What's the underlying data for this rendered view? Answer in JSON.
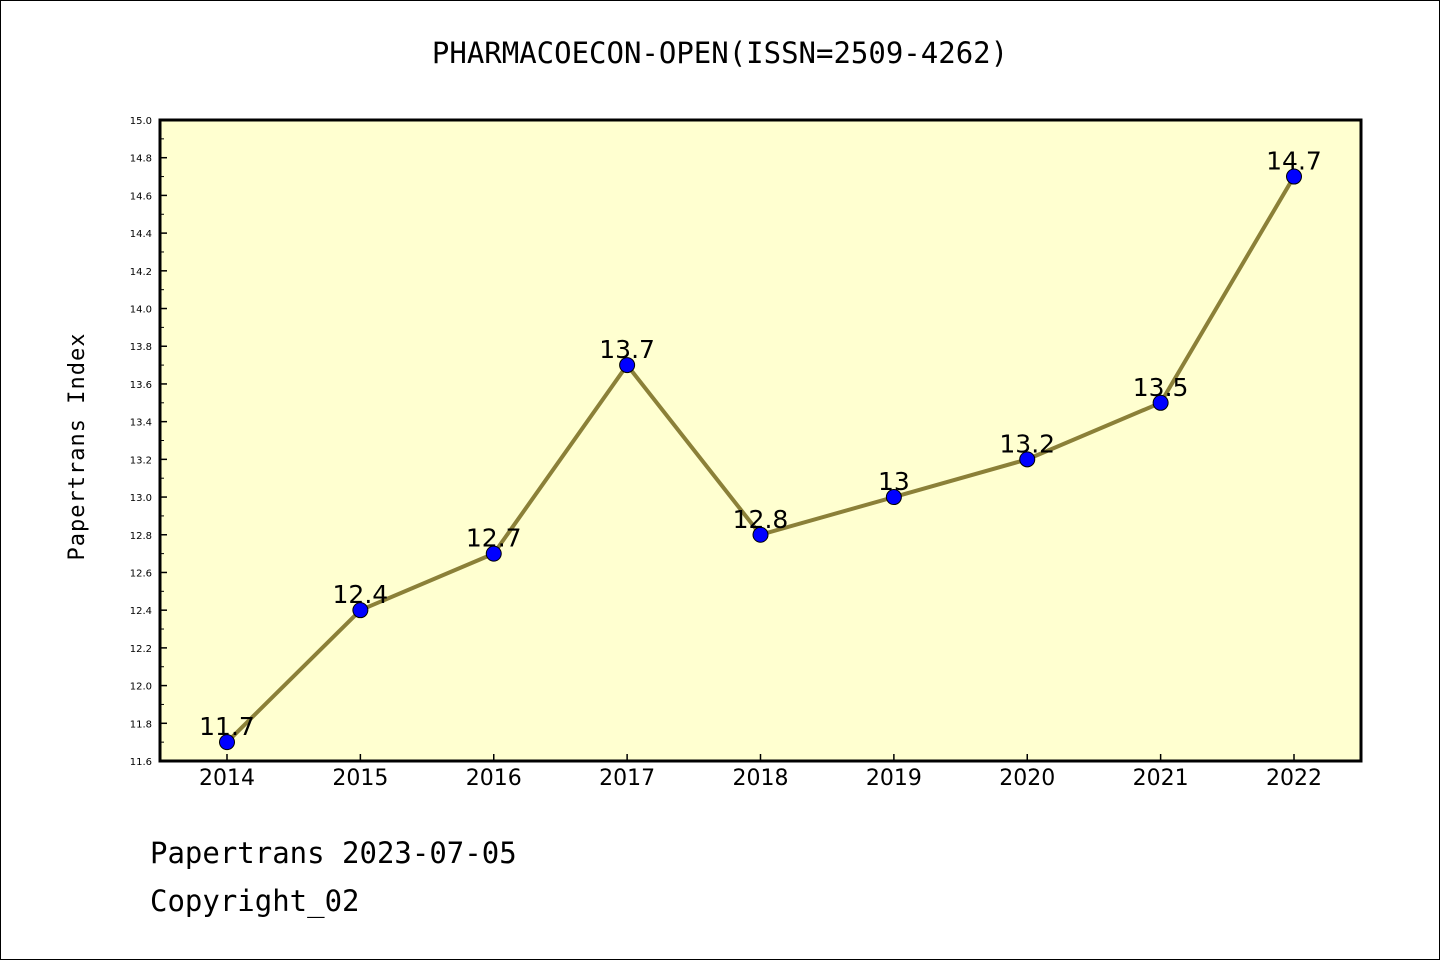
{
  "title": "PHARMACOECON-OPEN(ISSN=2509-4262)",
  "footer": {
    "date_line": "Papertrans 2023-07-05",
    "copyright_line": "Copyright_02"
  },
  "colors": {
    "plot_background": "#ffffd0",
    "line": "#8b8038",
    "marker": "#0000ff"
  },
  "chart_data": {
    "type": "line",
    "title": "PHARMACOECON-OPEN(ISSN=2509-4262)",
    "xlabel": "",
    "ylabel": "Papertrans Index",
    "categories": [
      "2014",
      "2015",
      "2016",
      "2017",
      "2018",
      "2019",
      "2020",
      "2021",
      "2022"
    ],
    "values": [
      11.7,
      12.4,
      12.7,
      13.7,
      12.8,
      13.0,
      13.2,
      13.5,
      14.7
    ],
    "data_labels": [
      "11.7",
      "12.4",
      "12.7",
      "13.7",
      "12.8",
      "13",
      "13.2",
      "13.5",
      "14.7"
    ],
    "ylim": [
      11.6,
      15.0
    ],
    "y_ticks": [
      "11.6",
      "11.8",
      "12.0",
      "12.2",
      "12.4",
      "12.6",
      "12.8",
      "13.0",
      "13.2",
      "13.4",
      "13.6",
      "13.8",
      "14.0",
      "14.2",
      "14.4",
      "14.6",
      "14.8",
      "15.0"
    ],
    "grid": false,
    "legend": "none"
  }
}
